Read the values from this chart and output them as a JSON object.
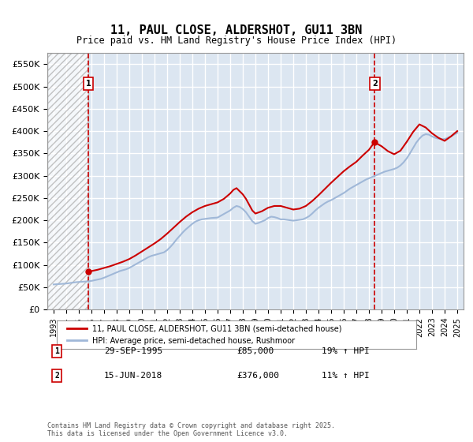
{
  "title": "11, PAUL CLOSE, ALDERSHOT, GU11 3BN",
  "subtitle": "Price paid vs. HM Land Registry's House Price Index (HPI)",
  "xlabel": "",
  "ylabel": "",
  "ylim": [
    0,
    575000
  ],
  "yticks": [
    0,
    50000,
    100000,
    150000,
    200000,
    250000,
    300000,
    350000,
    400000,
    450000,
    500000,
    550000
  ],
  "ytick_labels": [
    "£0",
    "£50K",
    "£100K",
    "£150K",
    "£200K",
    "£250K",
    "£300K",
    "£350K",
    "£400K",
    "£450K",
    "£500K",
    "£550K"
  ],
  "xlim_start": 1992.5,
  "xlim_end": 2025.5,
  "xticks": [
    1993,
    1994,
    1995,
    1996,
    1997,
    1998,
    1999,
    2000,
    2001,
    2002,
    2003,
    2004,
    2005,
    2006,
    2007,
    2008,
    2009,
    2010,
    2011,
    2012,
    2013,
    2014,
    2015,
    2016,
    2017,
    2018,
    2019,
    2020,
    2021,
    2022,
    2023,
    2024,
    2025
  ],
  "background_color": "#ffffff",
  "plot_bg_color": "#dce6f1",
  "hatch_color": "#c0c0c0",
  "grid_color": "#ffffff",
  "line_red_color": "#cc0000",
  "line_blue_color": "#a0b8d8",
  "transaction1_year": 1995.75,
  "transaction1_price": 85000,
  "transaction2_year": 2018.46,
  "transaction2_price": 376000,
  "legend_label_red": "11, PAUL CLOSE, ALDERSHOT, GU11 3BN (semi-detached house)",
  "legend_label_blue": "HPI: Average price, semi-detached house, Rushmoor",
  "annotation1_label": "1",
  "annotation1_date": "29-SEP-1995",
  "annotation1_price": "£85,000",
  "annotation1_hpi": "19% ↑ HPI",
  "annotation2_label": "2",
  "annotation2_date": "15-JUN-2018",
  "annotation2_price": "£376,000",
  "annotation2_hpi": "11% ↑ HPI",
  "footer_text": "Contains HM Land Registry data © Crown copyright and database right 2025.\nThis data is licensed under the Open Government Licence v3.0.",
  "hpi_data": {
    "years": [
      1993.0,
      1993.25,
      1993.5,
      1993.75,
      1994.0,
      1994.25,
      1994.5,
      1994.75,
      1995.0,
      1995.25,
      1995.5,
      1995.75,
      1996.0,
      1996.25,
      1996.5,
      1996.75,
      1997.0,
      1997.25,
      1997.5,
      1997.75,
      1998.0,
      1998.25,
      1998.5,
      1998.75,
      1999.0,
      1999.25,
      1999.5,
      1999.75,
      2000.0,
      2000.25,
      2000.5,
      2000.75,
      2001.0,
      2001.25,
      2001.5,
      2001.75,
      2002.0,
      2002.25,
      2002.5,
      2002.75,
      2003.0,
      2003.25,
      2003.5,
      2003.75,
      2004.0,
      2004.25,
      2004.5,
      2004.75,
      2005.0,
      2005.25,
      2005.5,
      2005.75,
      2006.0,
      2006.25,
      2006.5,
      2006.75,
      2007.0,
      2007.25,
      2007.5,
      2007.75,
      2008.0,
      2008.25,
      2008.5,
      2008.75,
      2009.0,
      2009.25,
      2009.5,
      2009.75,
      2010.0,
      2010.25,
      2010.5,
      2010.75,
      2011.0,
      2011.25,
      2011.5,
      2011.75,
      2012.0,
      2012.25,
      2012.5,
      2012.75,
      2013.0,
      2013.25,
      2013.5,
      2013.75,
      2014.0,
      2014.25,
      2014.5,
      2014.75,
      2015.0,
      2015.25,
      2015.5,
      2015.75,
      2016.0,
      2016.25,
      2016.5,
      2016.75,
      2017.0,
      2017.25,
      2017.5,
      2017.75,
      2018.0,
      2018.25,
      2018.5,
      2018.75,
      2019.0,
      2019.25,
      2019.5,
      2019.75,
      2020.0,
      2020.25,
      2020.5,
      2020.75,
      2021.0,
      2021.25,
      2021.5,
      2021.75,
      2022.0,
      2022.25,
      2022.5,
      2022.75,
      2023.0,
      2023.25,
      2023.5,
      2023.75,
      2024.0,
      2024.25,
      2024.5,
      2024.75,
      2025.0
    ],
    "values": [
      56000,
      56500,
      57000,
      57500,
      58000,
      59000,
      60000,
      61000,
      61500,
      62000,
      62500,
      63000,
      64000,
      65500,
      67000,
      68500,
      71000,
      74000,
      77000,
      80000,
      83000,
      86000,
      88000,
      90000,
      93000,
      97000,
      101000,
      105000,
      109000,
      113000,
      117000,
      120000,
      122000,
      124000,
      126000,
      128000,
      133000,
      140000,
      148000,
      157000,
      165000,
      173000,
      180000,
      186000,
      192000,
      197000,
      200000,
      202000,
      203000,
      204000,
      205000,
      205500,
      206000,
      210000,
      214000,
      218000,
      222000,
      228000,
      232000,
      230000,
      225000,
      218000,
      208000,
      198000,
      192000,
      194000,
      197000,
      200000,
      205000,
      208000,
      207000,
      205000,
      202000,
      202000,
      201000,
      200000,
      199000,
      200000,
      201000,
      202000,
      205000,
      209000,
      215000,
      222000,
      228000,
      233000,
      238000,
      242000,
      245000,
      249000,
      253000,
      257000,
      261000,
      266000,
      271000,
      275000,
      279000,
      283000,
      287000,
      291000,
      294000,
      297000,
      300000,
      303000,
      306000,
      309000,
      311000,
      313000,
      315000,
      318000,
      323000,
      330000,
      339000,
      350000,
      362000,
      374000,
      383000,
      390000,
      393000,
      392000,
      388000,
      385000,
      383000,
      382000,
      382000,
      385000,
      388000,
      392000,
      396000
    ]
  },
  "red_data": {
    "years": [
      1995.75,
      1996.0,
      1996.5,
      1997.0,
      1997.5,
      1998.0,
      1998.5,
      1999.0,
      1999.5,
      2000.0,
      2000.5,
      2001.0,
      2001.5,
      2002.0,
      2002.5,
      2003.0,
      2003.5,
      2004.0,
      2004.5,
      2005.0,
      2005.5,
      2006.0,
      2006.5,
      2007.0,
      2007.25,
      2007.5,
      2007.75,
      2008.0,
      2008.25,
      2008.5,
      2008.75,
      2009.0,
      2009.5,
      2010.0,
      2010.5,
      2011.0,
      2011.5,
      2012.0,
      2012.5,
      2013.0,
      2013.5,
      2014.0,
      2014.5,
      2015.0,
      2015.5,
      2016.0,
      2016.5,
      2017.0,
      2017.5,
      2018.0,
      2018.46,
      2018.5,
      2019.0,
      2019.5,
      2020.0,
      2020.5,
      2021.0,
      2021.5,
      2022.0,
      2022.5,
      2023.0,
      2023.5,
      2024.0,
      2024.5,
      2025.0
    ],
    "values": [
      85000,
      86000,
      89000,
      93000,
      97000,
      102000,
      107000,
      113000,
      121000,
      130000,
      139000,
      148000,
      158000,
      170000,
      183000,
      196000,
      208000,
      218000,
      226000,
      232000,
      236000,
      240000,
      248000,
      260000,
      268000,
      272000,
      265000,
      258000,
      248000,
      235000,
      222000,
      215000,
      220000,
      228000,
      232000,
      232000,
      228000,
      224000,
      226000,
      232000,
      243000,
      256000,
      270000,
      284000,
      297000,
      310000,
      321000,
      331000,
      345000,
      358000,
      376000,
      374000,
      366000,
      355000,
      348000,
      356000,
      376000,
      398000,
      415000,
      408000,
      395000,
      385000,
      378000,
      388000,
      400000
    ]
  }
}
